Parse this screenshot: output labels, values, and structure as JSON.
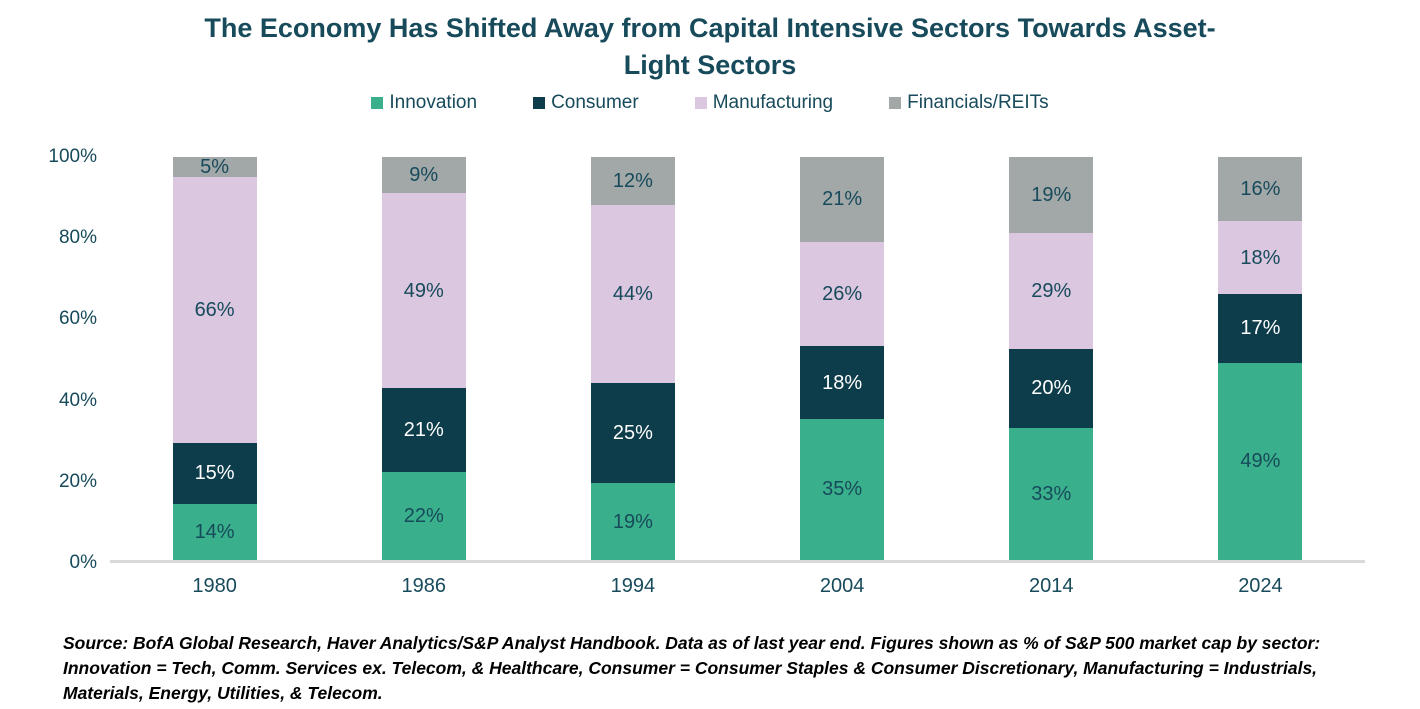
{
  "title": "The Economy Has Shifted Away from Capital Intensive Sectors Towards Asset-Light Sectors",
  "source_note": "Source: BofA Global Research, Haver Analytics/S&P Analyst Handbook. Data as of last year end. Figures shown as % of S&P 500 market cap by sector: Innovation = Tech, Comm. Services ex. Telecom, & Healthcare, Consumer = Consumer Staples & Consumer Discretionary, Manufacturing = Industrials, Materials, Energy, Utilities, & Telecom.",
  "colors": {
    "title_text": "#174A5B",
    "axis_line": "#D9D9D9",
    "dark_label_text": "#174A5B",
    "light_label_text": "#FFFFFF"
  },
  "chart_data": {
    "type": "bar",
    "stacked": true,
    "title": "The Economy Has Shifted Away from Capital Intensive Sectors Towards Asset-Light Sectors",
    "categories": [
      "1980",
      "1986",
      "1994",
      "2004",
      "2014",
      "2024"
    ],
    "series": [
      {
        "name": "Innovation",
        "color": "#39B08B",
        "label_color": "#174A5B",
        "values": [
          14,
          22,
          19,
          35,
          33,
          49
        ]
      },
      {
        "name": "Consumer",
        "color": "#0D3C4B",
        "label_color": "#FFFFFF",
        "values": [
          15,
          21,
          25,
          18,
          20,
          17
        ]
      },
      {
        "name": "Manufacturing",
        "color": "#DBC7E0",
        "label_color": "#174A5B",
        "values": [
          66,
          49,
          44,
          26,
          29,
          18
        ]
      },
      {
        "name": "Financials/REITs",
        "color": "#A2A8A8",
        "label_color": "#174A5B",
        "values": [
          5,
          9,
          12,
          21,
          19,
          16
        ]
      }
    ],
    "value_suffix": "%",
    "ylabel": "",
    "xlabel": "",
    "ylim": [
      0,
      100
    ],
    "yticks": [
      "100%",
      "80%",
      "60%",
      "40%",
      "20%",
      "0%"
    ],
    "grid": false,
    "legend_position": "top"
  }
}
